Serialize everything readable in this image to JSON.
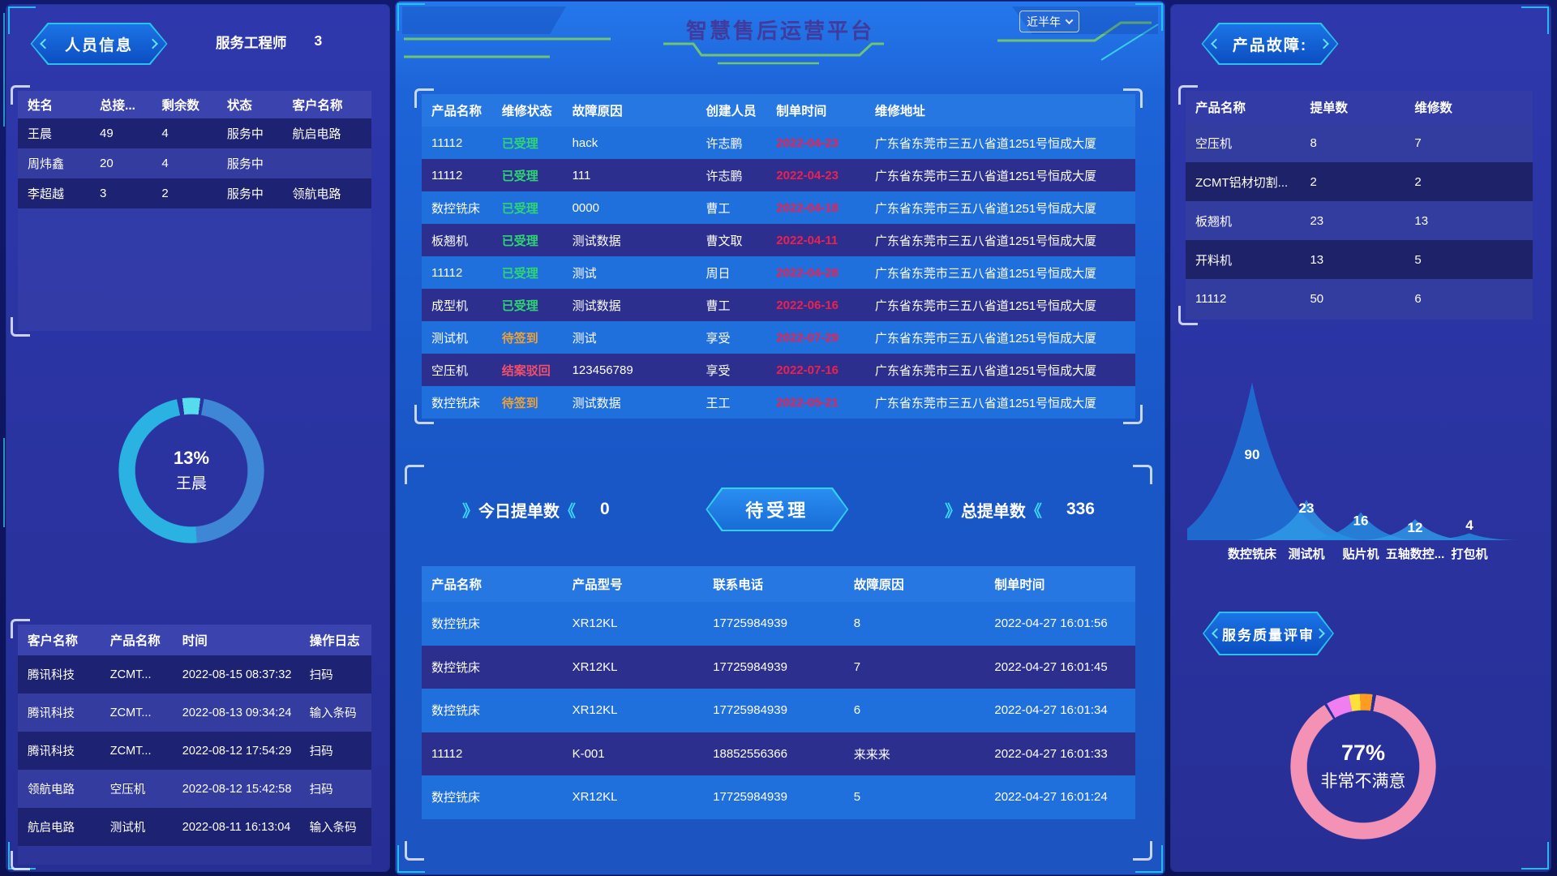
{
  "header": {
    "title": "智慧售后运营平台",
    "range_dropdown": "近半年"
  },
  "colors": {
    "accent_cyan": "#27c3ec",
    "row_bright": "#1f6fdc",
    "row_dark": "#2c2f8e",
    "date_red": "#f01f4e",
    "status": {
      "已受理": "#2fd573",
      "待签到": "#e8a23c",
      "结案驳回": "#f0506a"
    }
  },
  "left": {
    "badge": "人员信息",
    "engineer_label": "服务工程师",
    "engineer_count": "3",
    "personnel_table": {
      "headers": [
        "姓名",
        "总接...",
        "剩余数",
        "状态",
        "客户名称"
      ],
      "rows": [
        [
          "王晨",
          "49",
          "4",
          "服务中",
          "航启电路"
        ],
        [
          "周炜鑫",
          "20",
          "4",
          "服务中",
          ""
        ],
        [
          "李超越",
          "3",
          "2",
          "服务中",
          "领航电路"
        ]
      ]
    },
    "log_table": {
      "headers": [
        "客户名称",
        "产品名称",
        "时间",
        "操作日志"
      ],
      "rows": [
        [
          "腾讯科技",
          "ZCMT...",
          "2022-08-15 08:37:32",
          "扫码"
        ],
        [
          "腾讯科技",
          "ZCMT...",
          "2022-08-13 09:34:24",
          "输入条码"
        ],
        [
          "腾讯科技",
          "ZCMT...",
          "2022-08-12 17:54:29",
          "扫码"
        ],
        [
          "领航电路",
          "空压机",
          "2022-08-12 15:42:58",
          "扫码"
        ],
        [
          "航启电路",
          "测试机",
          "2022-08-11 16:13:04",
          "输入条码"
        ]
      ]
    }
  },
  "center": {
    "orders_table": {
      "headers": [
        "产品名称",
        "维修状态",
        "故障原因",
        "创建人员",
        "制单时间",
        "维修地址"
      ],
      "rows": [
        [
          "11112",
          "已受理",
          "hack",
          "许志鹏",
          "2022-04-23",
          "广东省东莞市三五八省道1251号恒成大厦"
        ],
        [
          "11112",
          "已受理",
          "111",
          "许志鹏",
          "2022-04-23",
          "广东省东莞市三五八省道1251号恒成大厦"
        ],
        [
          "数控铣床",
          "已受理",
          "0000",
          "曹工",
          "2022-04-18",
          "广东省东莞市三五八省道1251号恒成大厦"
        ],
        [
          "板翘机",
          "已受理",
          "测试数据",
          "曹文取",
          "2022-04-11",
          "广东省东莞市三五八省道1251号恒成大厦"
        ],
        [
          "11112",
          "已受理",
          "测试",
          "周日",
          "2022-04-28",
          "广东省东莞市三五八省道1251号恒成大厦"
        ],
        [
          "成型机",
          "已受理",
          "测试数据",
          "曹工",
          "2022-06-16",
          "广东省东莞市三五八省道1251号恒成大厦"
        ],
        [
          "测试机",
          "待签到",
          "测试",
          "享受",
          "2022-07-29",
          "广东省东莞市三五八省道1251号恒成大厦"
        ],
        [
          "空压机",
          "结案驳回",
          "123456789",
          "享受",
          "2022-07-16",
          "广东省东莞市三五八省道1251号恒成大厦"
        ],
        [
          "数控铣床",
          "待签到",
          "测试数据",
          "王工",
          "2022-05-21",
          "广东省东莞市三五八省道1251号恒成大厦"
        ]
      ]
    },
    "stats": {
      "deco_open": "》",
      "deco_close": "《",
      "today_label": "今日提单数",
      "today_value": "0",
      "pending_label": "待受理",
      "total_label": "总提单数",
      "total_value": "336"
    },
    "detail_table": {
      "headers": [
        "产品名称",
        "产品型号",
        "联系电话",
        "故障原因",
        "制单时间"
      ],
      "rows": [
        [
          "数控铣床",
          "XR12KL",
          "17725984939",
          "8",
          "2022-04-27 16:01:56"
        ],
        [
          "数控铣床",
          "XR12KL",
          "17725984939",
          "7",
          "2022-04-27 16:01:45"
        ],
        [
          "数控铣床",
          "XR12KL",
          "17725984939",
          "6",
          "2022-04-27 16:01:34"
        ],
        [
          "11112",
          "K-001",
          "18852556366",
          "来来来",
          "2022-04-27 16:01:33"
        ],
        [
          "数控铣床",
          "XR12KL",
          "17725984939",
          "5",
          "2022-04-27 16:01:24"
        ]
      ]
    }
  },
  "right": {
    "badge": "产品故障:",
    "fault_table": {
      "headers": [
        "产品名称",
        "提单数",
        "维修数"
      ],
      "rows": [
        [
          "空压机",
          "8",
          "7"
        ],
        [
          "ZCMT铝材切割...",
          "2",
          "2"
        ],
        [
          "板翘机",
          "23",
          "13"
        ],
        [
          "开料机",
          "13",
          "5"
        ],
        [
          "11112",
          "50",
          "6"
        ]
      ]
    },
    "quality_badge": "服务质量评审"
  },
  "chart_data": [
    {
      "name": "engineer-workload-donut",
      "type": "pie",
      "center_text": [
        "13%",
        "王晨"
      ],
      "from_deg": 10,
      "segments": [
        {
          "label": "arc-steel-blue",
          "color": "#3e86d6",
          "start": 0,
          "end": 46
        },
        {
          "label": "arc-cyan-blue",
          "color": "#29b2e2",
          "start": 46,
          "end": 94
        },
        {
          "label": "arc-bright-cyan",
          "color": "#55dded",
          "start": 95.2,
          "end": 99.2
        }
      ]
    },
    {
      "name": "product-fault-distribution",
      "type": "area",
      "categories": [
        "数控铣床",
        "测试机",
        "贴片机",
        "五轴数控...",
        "打包机"
      ],
      "values": [
        90,
        23,
        16,
        12,
        4
      ],
      "ylim": [
        0,
        90
      ],
      "grid": false
    },
    {
      "name": "service-quality-donut",
      "type": "pie",
      "center_text": [
        "77%",
        "非常不满意"
      ],
      "from_deg": -30,
      "segments": [
        {
          "label": "seg-magenta",
          "color": "#ef7ff0",
          "start": 0,
          "end": 5.2
        },
        {
          "label": "seg-yellow",
          "color": "#fde03a",
          "start": 5.2,
          "end": 7.6
        },
        {
          "label": "seg-orange",
          "color": "#fe9b22",
          "start": 7.6,
          "end": 10.4
        },
        {
          "label": "seg-pink",
          "color": "#f492b5",
          "start": 11.2,
          "end": 99.4
        }
      ]
    }
  ]
}
